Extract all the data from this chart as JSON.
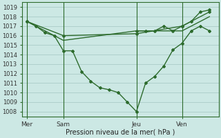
{
  "xlabel": "Pression niveau de la mer( hPa )",
  "bg_color": "#cce8e4",
  "grid_color": "#aaccc8",
  "line_color": "#2d6b2d",
  "spine_color": "#2d6b2d",
  "ylim": [
    1007.5,
    1019.5
  ],
  "yticks": [
    1008,
    1009,
    1010,
    1011,
    1012,
    1013,
    1014,
    1015,
    1016,
    1017,
    1018,
    1019
  ],
  "xtick_labels": [
    "Mer",
    "Sam",
    "Jeu",
    "Ven"
  ],
  "xtick_positions": [
    0,
    4,
    12,
    17
  ],
  "vline_positions": [
    0,
    4,
    12,
    17
  ],
  "xlim": [
    -0.5,
    21
  ],
  "curve_x": [
    0,
    1,
    2,
    3,
    4,
    5,
    6,
    7,
    8,
    9,
    10,
    11,
    12,
    13,
    14,
    15,
    16,
    17,
    18,
    19,
    20
  ],
  "curve_y": [
    1017.5,
    1017.0,
    1016.3,
    1016.0,
    1014.4,
    1014.4,
    1012.2,
    1011.2,
    1010.5,
    1010.3,
    1010.0,
    1009.0,
    1008.0,
    1011.0,
    1011.7,
    1012.8,
    1014.5,
    1015.2,
    1016.5,
    1017.0,
    1016.5
  ],
  "flat1_x": [
    0,
    4,
    12,
    17,
    20
  ],
  "flat1_y": [
    1017.5,
    1016.0,
    1016.2,
    1017.0,
    1018.5
  ],
  "flat2_x": [
    0,
    4,
    12,
    17,
    20
  ],
  "flat2_y": [
    1017.5,
    1015.5,
    1016.5,
    1016.5,
    1018.0
  ],
  "right_x": [
    12,
    13,
    14,
    15,
    16,
    17,
    18,
    19,
    20
  ],
  "right_y": [
    1016.5,
    1016.5,
    1016.5,
    1017.0,
    1016.5,
    1017.0,
    1017.5,
    1018.5,
    1018.7
  ]
}
